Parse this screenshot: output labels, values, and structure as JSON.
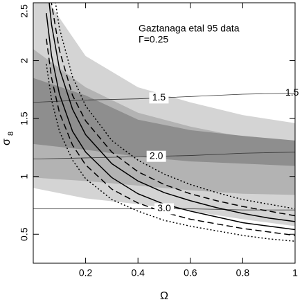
{
  "chart_data": {
    "type": "line",
    "annotations": [
      "Gaztanaga etal 95 data",
      "Γ=0.25"
    ],
    "xlabel": "Ω",
    "ylabel": "σ",
    "ylabel_subscript": "8",
    "xlim": [
      0,
      1
    ],
    "ylim": [
      0.25,
      2.5
    ],
    "xticks": [
      0.2,
      0.4,
      0.6,
      0.8,
      1
    ],
    "yticks": [
      0.5,
      1,
      1.5,
      2,
      2.5
    ],
    "band_x": [
      0,
      0.2,
      0.4,
      0.6,
      0.8,
      1.0
    ],
    "bands": [
      {
        "color": "#d4d4d4",
        "upper": [
          2.7,
          2.04,
          1.77,
          1.64,
          1.53,
          1.46
        ],
        "lower": [
          0.9,
          0.81,
          0.76,
          0.7,
          0.63,
          0.57
        ]
      },
      {
        "color": "#b3b3b3",
        "upper": [
          2.1,
          1.77,
          1.55,
          1.43,
          1.34,
          1.28
        ],
        "lower": [
          0.99,
          0.96,
          0.92,
          0.88,
          0.85,
          0.84
        ]
      },
      {
        "color": "#8e8e8e",
        "upper": [
          1.85,
          1.7,
          1.49,
          1.4,
          1.35,
          1.31
        ],
        "lower": [
          1.28,
          1.23,
          1.17,
          1.13,
          1.11,
          1.09
        ]
      }
    ],
    "contours": [
      {
        "label": "1.5",
        "end_label": "1.5",
        "values": [
          1.64,
          1.66,
          1.67,
          1.69,
          1.71,
          1.72
        ]
      },
      {
        "label": "2.0",
        "values": [
          1.15,
          1.16,
          1.17,
          1.18,
          1.2,
          1.21
        ]
      },
      {
        "label": "3.0",
        "values": [
          0.72,
          0.72,
          0.72,
          0.72,
          0.71,
          0.71
        ]
      }
    ],
    "x": [
      0.05,
      0.07,
      0.1,
      0.15,
      0.2,
      0.3,
      0.4,
      0.5,
      0.6,
      0.7,
      0.8,
      0.9,
      1.0
    ],
    "series": [
      {
        "color": "#000000",
        "dash": "dotted",
        "values": [
          3.22,
          2.72,
          2.28,
          1.86,
          1.61,
          1.31,
          1.14,
          1.02,
          0.93,
          0.86,
          0.8,
          0.76,
          0.72
        ]
      },
      {
        "color": "#000000",
        "dash": "dashed",
        "values": [
          2.95,
          2.49,
          2.09,
          1.7,
          1.48,
          1.21,
          1.04,
          0.93,
          0.85,
          0.79,
          0.74,
          0.7,
          0.66
        ]
      },
      {
        "color": "#000000",
        "dash": "solid",
        "values": [
          2.73,
          2.31,
          1.93,
          1.58,
          1.36,
          1.11,
          0.96,
          0.86,
          0.79,
          0.73,
          0.68,
          0.64,
          0.61
        ]
      },
      {
        "color": "#000000",
        "dash": "solid",
        "values": [
          2.41,
          2.04,
          1.71,
          1.39,
          1.21,
          0.99,
          0.85,
          0.76,
          0.7,
          0.65,
          0.6,
          0.57,
          0.54
        ]
      },
      {
        "color": "#000000",
        "dash": "dashed",
        "values": [
          2.19,
          1.85,
          1.55,
          1.27,
          1.1,
          0.89,
          0.77,
          0.69,
          0.63,
          0.59,
          0.55,
          0.52,
          0.49
        ]
      },
      {
        "color": "#000000",
        "dash": "dotted",
        "values": [
          1.97,
          1.66,
          1.39,
          1.14,
          0.98,
          0.8,
          0.7,
          0.62,
          0.57,
          0.53,
          0.49,
          0.46,
          0.44
        ]
      }
    ]
  }
}
